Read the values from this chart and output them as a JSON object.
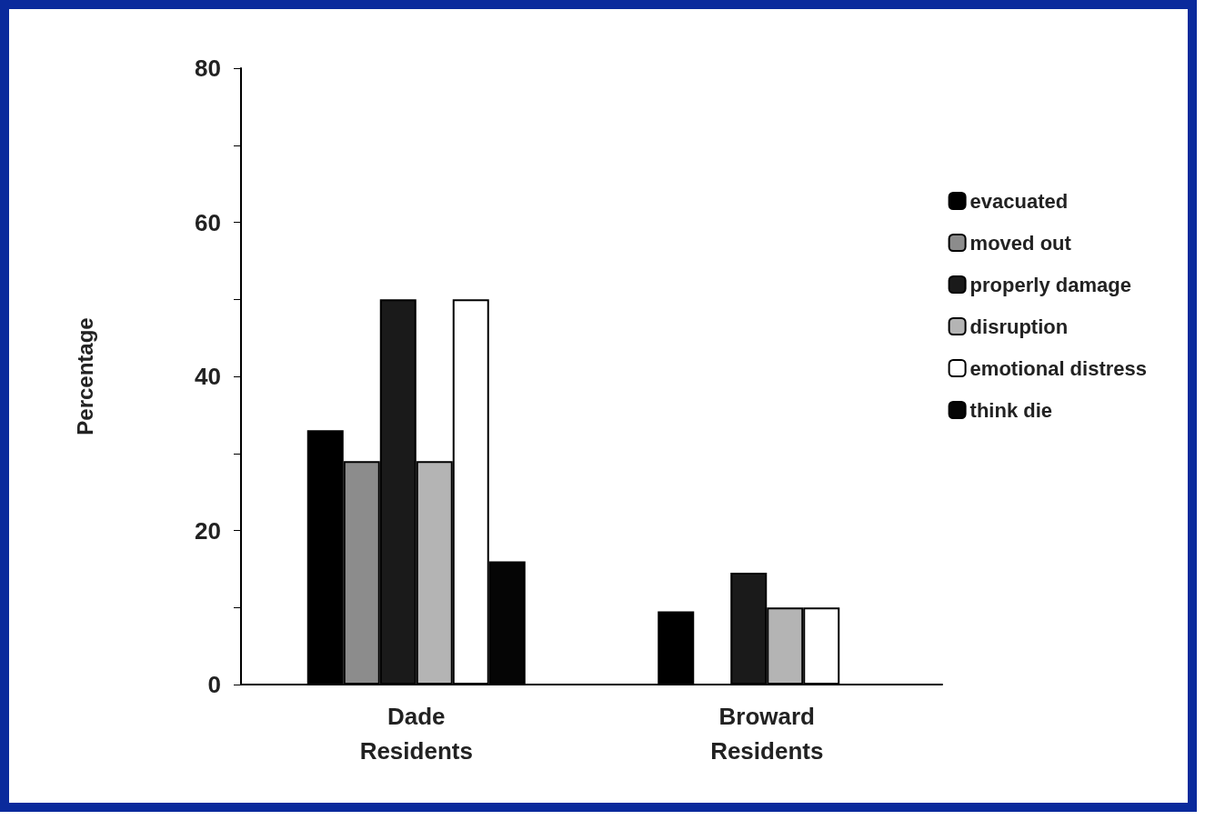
{
  "chart_data": {
    "type": "bar",
    "ylabel": "Percentage",
    "categories": [
      "Dade\nResidents",
      "Broward\nResidents"
    ],
    "series": [
      {
        "name": "evacuated",
        "color": "#000000",
        "values": [
          33,
          9.5
        ]
      },
      {
        "name": "moved out",
        "color": "#8c8c8c",
        "values": [
          29,
          null
        ]
      },
      {
        "name": "properly damage",
        "color": "#1a1a1a",
        "values": [
          50,
          14.5
        ]
      },
      {
        "name": "disruption",
        "color": "#b4b4b4",
        "values": [
          29,
          10
        ]
      },
      {
        "name": "emotional distress",
        "color": "#ffffff",
        "values": [
          50,
          10
        ]
      },
      {
        "name": "think die",
        "color": "#050505",
        "values": [
          16,
          null
        ]
      }
    ],
    "ylim": [
      0,
      80
    ],
    "yticks": [
      0,
      {
        "value": 10,
        "label": null
      },
      20,
      {
        "value": 30,
        "label": null
      },
      40,
      {
        "value": 50,
        "label": null
      },
      60,
      {
        "value": 70,
        "label": null
      },
      80
    ],
    "grid": false,
    "legend": "right"
  }
}
